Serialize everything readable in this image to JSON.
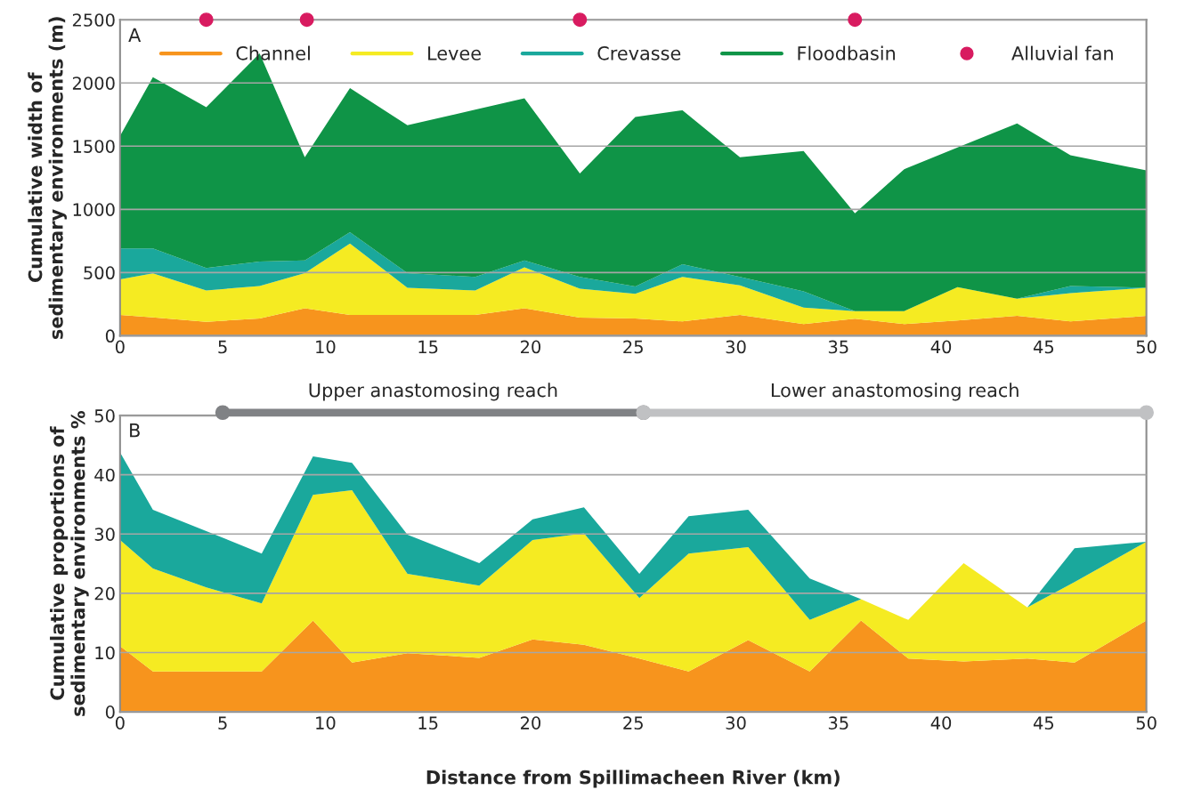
{
  "chart_data": [
    {
      "type": "area",
      "stacked": true,
      "ylabel": "Cumulative width of\nsedimentary environments (m)",
      "xlim": [
        0,
        50
      ],
      "xticks": [
        0,
        5,
        10,
        15,
        20,
        25,
        30,
        35,
        40,
        45,
        50
      ],
      "ylim": [
        0,
        2500
      ],
      "yticks": [
        0,
        500,
        1000,
        1500,
        2000,
        2500
      ],
      "grid": "y",
      "legend": "top right",
      "annotations": [
        "A"
      ],
      "x": [
        0,
        1.6,
        4.2,
        6.8,
        9.0,
        11.2,
        14.0,
        17.3,
        19.7,
        22.4,
        25.1,
        27.4,
        30.2,
        33.3,
        35.8,
        38.2,
        40.8,
        43.7,
        46.3,
        50
      ],
      "series": [
        {
          "name": "Channel",
          "color": "#f7941d",
          "values": [
            164,
            145,
            111,
            137,
            218,
            164,
            164,
            164,
            218,
            143,
            137,
            113,
            165,
            92,
            134,
            92,
            120,
            157,
            113,
            157
          ]
        },
        {
          "name": "Levee",
          "color": "#f5eb22",
          "values": [
            283,
            348,
            248,
            257,
            278,
            566,
            216,
            195,
            324,
            230,
            194,
            353,
            233,
            130,
            61,
            103,
            264,
            137,
            225,
            223
          ]
        },
        {
          "name": "Crevasse",
          "color": "#1aa89c",
          "values": [
            243,
            197,
            177,
            193,
            99,
            89,
            116,
            106,
            53,
            92,
            59,
            99,
            68,
            130,
            0,
            0,
            0,
            0,
            56,
            0
          ]
        },
        {
          "name": "Floodbasin",
          "color": "#0f9447",
          "values": [
            892,
            1356,
            1272,
            1647,
            817,
            1140,
            1169,
            1323,
            1283,
            818,
            1340,
            1219,
            946,
            1109,
            773,
            1123,
            1105,
            1386,
            1034,
            928
          ]
        },
        {
          "name": "Alluvial fan",
          "type": "scatter",
          "marker": "circle",
          "color": "#d81b60",
          "x": [
            4.2,
            9.1,
            22.4,
            35.8
          ],
          "values": [
            2500,
            2500,
            2500,
            2500
          ]
        }
      ]
    },
    {
      "type": "area",
      "stacked": true,
      "xlabel": "Distance from Spillimacheen River (km)",
      "ylabel": "Cumulative proportions of\nsedimentary environments %",
      "xlim": [
        0,
        50
      ],
      "xticks": [
        0,
        5,
        10,
        15,
        20,
        25,
        30,
        35,
        40,
        45,
        50
      ],
      "ylim": [
        0,
        50
      ],
      "yticks": [
        0,
        10,
        20,
        30,
        40,
        50
      ],
      "grid": "y",
      "annotations": [
        "B",
        "Upper anastomosing reach",
        "Lower anastomosing reach"
      ],
      "x": [
        0,
        1.6,
        4.2,
        6.9,
        9.4,
        11.3,
        14.0,
        17.5,
        20.1,
        22.6,
        25.3,
        27.7,
        30.6,
        33.6,
        36.1,
        38.4,
        41.1,
        44.2,
        46.5,
        50
      ],
      "series": [
        {
          "color": "#f7941d",
          "values": [
            11.1,
            6.8,
            6.8,
            6.8,
            15.4,
            8.3,
            9.9,
            9.1,
            12.2,
            11.3,
            9.0,
            6.8,
            12.1,
            6.8,
            15.4,
            9.0,
            8.5,
            9.0,
            8.3,
            15.4
          ]
        },
        {
          "color": "#f5eb22",
          "values": [
            17.9,
            17.4,
            14.2,
            11.5,
            21.2,
            29.1,
            13.4,
            12.2,
            16.8,
            18.8,
            10.2,
            19.9,
            15.7,
            8.7,
            3.6,
            6.5,
            16.6,
            8.6,
            13.6,
            13.3
          ]
        },
        {
          "color": "#1aa89c",
          "values": [
            14.8,
            9.9,
            9.5,
            8.4,
            6.5,
            4.6,
            6.6,
            3.8,
            3.5,
            4.4,
            4.1,
            6.3,
            6.3,
            7.0,
            0,
            0,
            0,
            0,
            5.7,
            0
          ]
        }
      ]
    }
  ]
}
